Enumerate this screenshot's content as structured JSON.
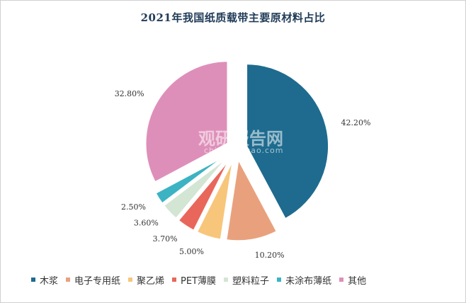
{
  "chart_data": {
    "type": "pie",
    "title": "2021年我国纸质载带主要原材料占比",
    "slices": [
      {
        "label": "木浆",
        "value": 42.2,
        "display": "42.20%",
        "color": "#1e6b8f"
      },
      {
        "label": "电子专用纸",
        "value": 10.2,
        "display": "10.20%",
        "color": "#e9a17d"
      },
      {
        "label": "聚乙烯",
        "value": 5.0,
        "display": "5.00%",
        "color": "#f7c67b"
      },
      {
        "label": "PET薄膜",
        "value": 3.7,
        "display": "3.70%",
        "color": "#e8675a"
      },
      {
        "label": "塑料粒子",
        "value": 3.6,
        "display": "3.60%",
        "color": "#d3e5d3"
      },
      {
        "label": "未涂布薄纸",
        "value": 2.5,
        "display": "2.50%",
        "color": "#3bb3c3"
      },
      {
        "label": "其他",
        "value": 32.8,
        "display": "32.80%",
        "color": "#de8fb9"
      }
    ],
    "legend_position": "bottom"
  },
  "watermark": {
    "cn": "观研报告网",
    "en": "chinabaogao.com"
  }
}
